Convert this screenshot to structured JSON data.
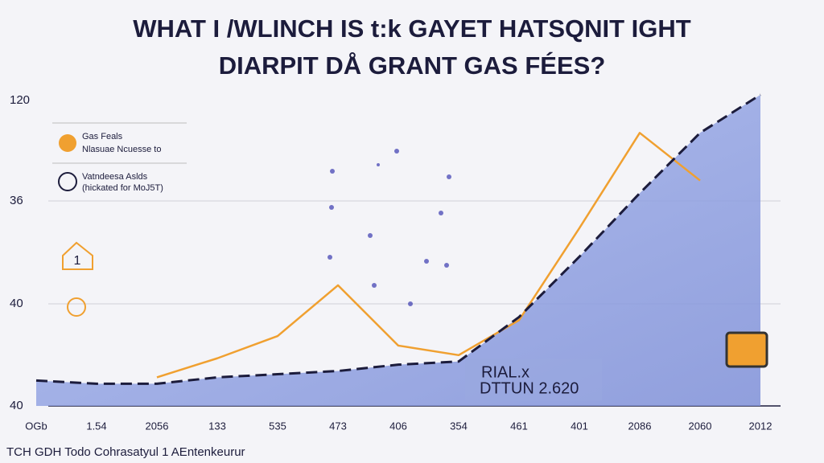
{
  "chart_data": {
    "type": "line",
    "title": "WHAT I /WLINCH IS t:k GAYET HATSQNIT IGHT",
    "subtitle": "DIARPIT DÅ GRANT GAS FÉES?",
    "categories": [
      "OGb",
      "1.54",
      "2056",
      "133",
      "535",
      "473",
      "406",
      "354",
      "461",
      "401",
      "2086",
      "2060",
      "2012"
    ],
    "y_axis_labels": [
      "120",
      "36",
      "40",
      "40"
    ],
    "ylim": [
      0,
      100
    ],
    "series": [
      {
        "name": "Gas Feals",
        "note_label": "Nlasuae Ncuesse to",
        "color": "#f0a030",
        "values": [
          null,
          null,
          9,
          15,
          22,
          38,
          19,
          16,
          27,
          56,
          86,
          71,
          null
        ]
      },
      {
        "name": "Vatndeesa Aslds",
        "note_label": "(hickated for MoJ5T)",
        "color": "#1c1c3c",
        "values": [
          8,
          7,
          7,
          9,
          10,
          11,
          13,
          14,
          28,
          47,
          67,
          86,
          98
        ]
      }
    ],
    "annotations": [
      "1",
      "RIAL.x",
      "DTTUN 2.620"
    ],
    "footer": "TCH GDH Todo Cohrasatyul 1 AEntenkeurur",
    "grid": true
  }
}
